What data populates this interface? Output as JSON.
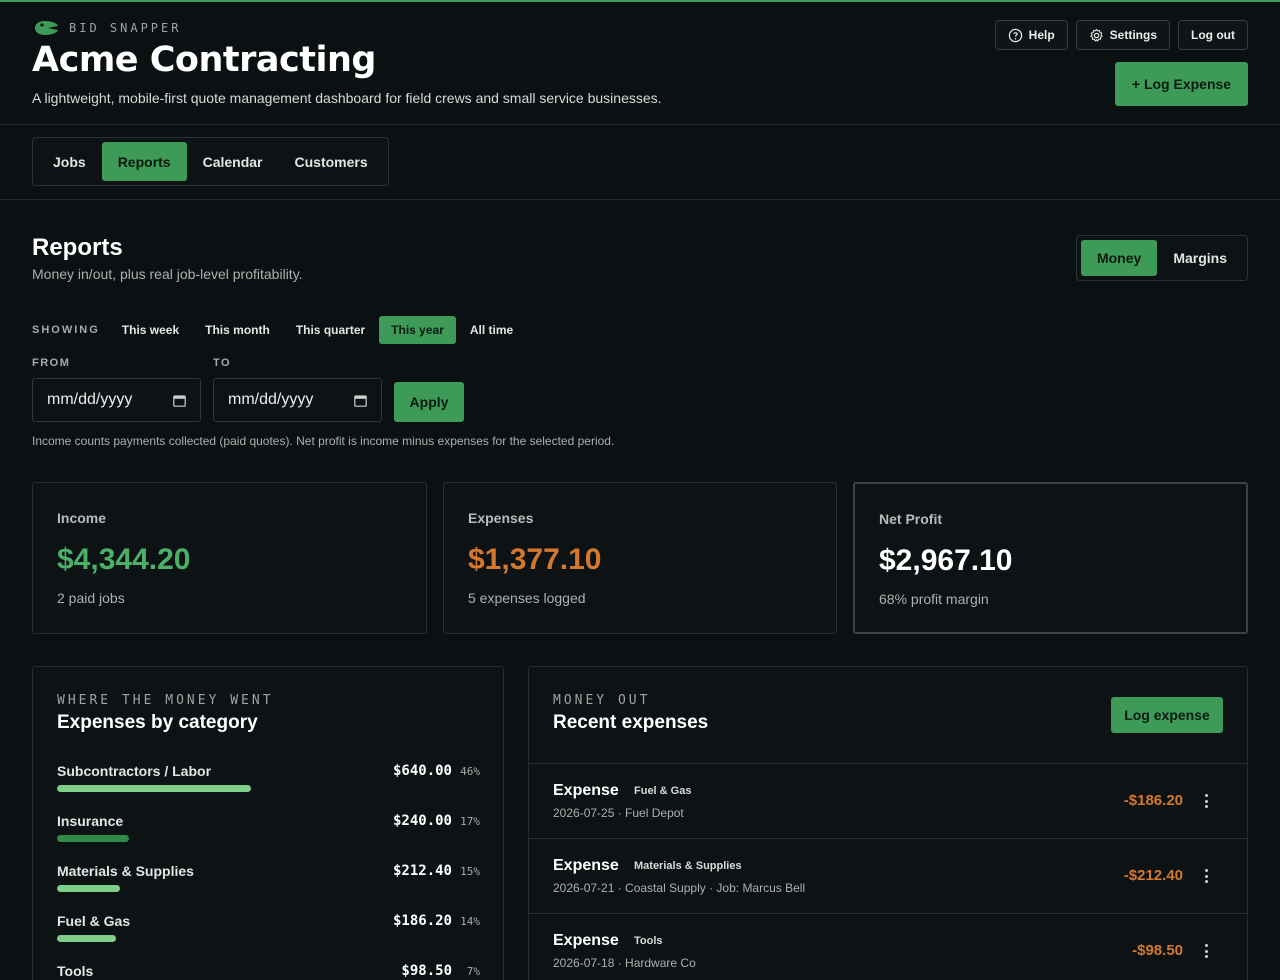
{
  "colors": {
    "accent": "#3d9b57",
    "income": "#4caf68",
    "expense": "#d4772f",
    "background": "#0b1012"
  },
  "brand": {
    "name": "BID SNAPPER",
    "logo_icon": "snapper-logo-icon"
  },
  "header": {
    "company": "Acme Contracting",
    "tagline": "A lightweight, mobile-first quote management dashboard for field crews and small service businesses.",
    "help_label": "Help",
    "settings_label": "Settings",
    "logout_label": "Log out",
    "log_expense_label": "+ Log Expense"
  },
  "nav": {
    "tabs": [
      {
        "label": "Jobs"
      },
      {
        "label": "Reports"
      },
      {
        "label": "Calendar"
      },
      {
        "label": "Customers"
      }
    ],
    "active": "Reports"
  },
  "reports": {
    "title": "Reports",
    "subtitle": "Money in/out, plus real job-level profitability.",
    "view_toggle": [
      {
        "label": "Money"
      },
      {
        "label": "Margins"
      }
    ],
    "view_active": "Money"
  },
  "filters": {
    "showing_label": "SHOWING",
    "periods": [
      {
        "label": "This week"
      },
      {
        "label": "This month"
      },
      {
        "label": "This quarter"
      },
      {
        "label": "This year"
      },
      {
        "label": "All time"
      }
    ],
    "active_period": "This year",
    "from_label": "FROM",
    "to_label": "TO",
    "from_placeholder": "mm/dd/yyyy",
    "to_placeholder": "mm/dd/yyyy",
    "apply_label": "Apply",
    "note": "Income counts payments collected (paid quotes). Net profit is income minus expenses for the selected period."
  },
  "stats": [
    {
      "label": "Income",
      "value": "$4,344.20",
      "sub": "2 paid jobs",
      "color": "#4caf68"
    },
    {
      "label": "Expenses",
      "value": "$1,377.10",
      "sub": "5 expenses logged",
      "color": "#d4772f"
    },
    {
      "label": "Net Profit",
      "value": "$2,967.10",
      "sub": "68% profit margin",
      "color": "#ffffff"
    }
  ],
  "categories_panel": {
    "eyebrow": "WHERE THE MONEY WENT",
    "title": "Expenses by category",
    "items": [
      {
        "name": "Subcontractors / Labor",
        "amount": "$640.00",
        "pct_label": "46%",
        "pct": 46,
        "color": "#7fcf8a"
      },
      {
        "name": "Insurance",
        "amount": "$240.00",
        "pct_label": "17%",
        "pct": 17,
        "color": "#2f8a45"
      },
      {
        "name": "Materials & Supplies",
        "amount": "$212.40",
        "pct_label": "15%",
        "pct": 15,
        "color": "#7fcf8a"
      },
      {
        "name": "Fuel & Gas",
        "amount": "$186.20",
        "pct_label": "14%",
        "pct": 14,
        "color": "#7fcf8a"
      },
      {
        "name": "Tools",
        "amount": "$98.50",
        "pct_label": "7%",
        "pct": 7,
        "color": "#7fcf8a"
      }
    ]
  },
  "expenses_panel": {
    "eyebrow": "MONEY OUT",
    "title": "Recent expenses",
    "log_label": "Log expense",
    "items": [
      {
        "kind": "Expense",
        "category": "Fuel & Gas",
        "meta": "2026-07-25 · Fuel Depot",
        "amount": "-$186.20"
      },
      {
        "kind": "Expense",
        "category": "Materials & Supplies",
        "meta": "2026-07-21 · Coastal Supply · Job: Marcus Bell",
        "amount": "-$212.40"
      },
      {
        "kind": "Expense",
        "category": "Tools",
        "meta": "2026-07-18 · Hardware Co",
        "amount": "-$98.50"
      }
    ]
  }
}
